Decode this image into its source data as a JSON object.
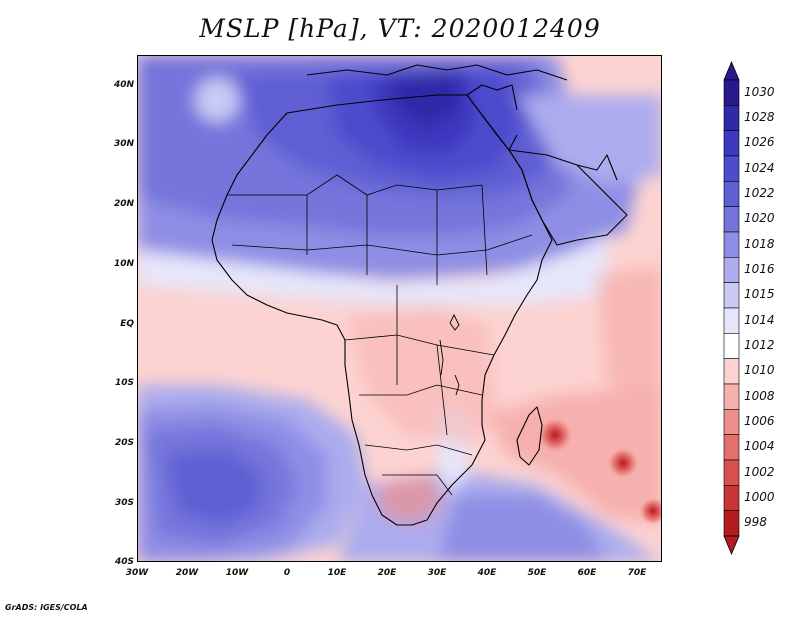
{
  "title": "MSLP [hPa], VT: 2020012409",
  "credit": "GrADS: IGES/COLA",
  "latitude_labels": [
    "40N",
    "30N",
    "20N",
    "10N",
    "EQ",
    "10S",
    "20S",
    "30S",
    "40S"
  ],
  "longitude_labels": [
    "30W",
    "20W",
    "10W",
    "0",
    "10E",
    "20E",
    "30E",
    "40E",
    "50E",
    "60E",
    "70E"
  ],
  "colorbar": {
    "labels": [
      "1030",
      "1028",
      "1026",
      "1024",
      "1022",
      "1020",
      "1018",
      "1016",
      "1015",
      "1014",
      "1012",
      "1010",
      "1008",
      "1006",
      "1004",
      "1002",
      "1000",
      "998"
    ],
    "colors": [
      "#281a8c",
      "#2f2aa8",
      "#3c39c0",
      "#4d4ccd",
      "#5f5fd3",
      "#7474dc",
      "#8e8ee5",
      "#acacee",
      "#cacaf5",
      "#e6e6fb",
      "#ffffff",
      "#fcd3d1",
      "#f6b0ad",
      "#ee8f8b",
      "#e3706c",
      "#d85151",
      "#c93535",
      "#b31d1d"
    ]
  },
  "fields": {
    "ridge_label": "High pressure over North Africa / Mediterranean (~1028–1030 hPa)",
    "south_atlantic_high": "South Atlantic high (~1024 hPa)",
    "lows": [
      "Tropical low near 53E 18S (~1000 hPa)",
      "Low near 67E 23S",
      "Low near 73E 31S"
    ]
  }
}
